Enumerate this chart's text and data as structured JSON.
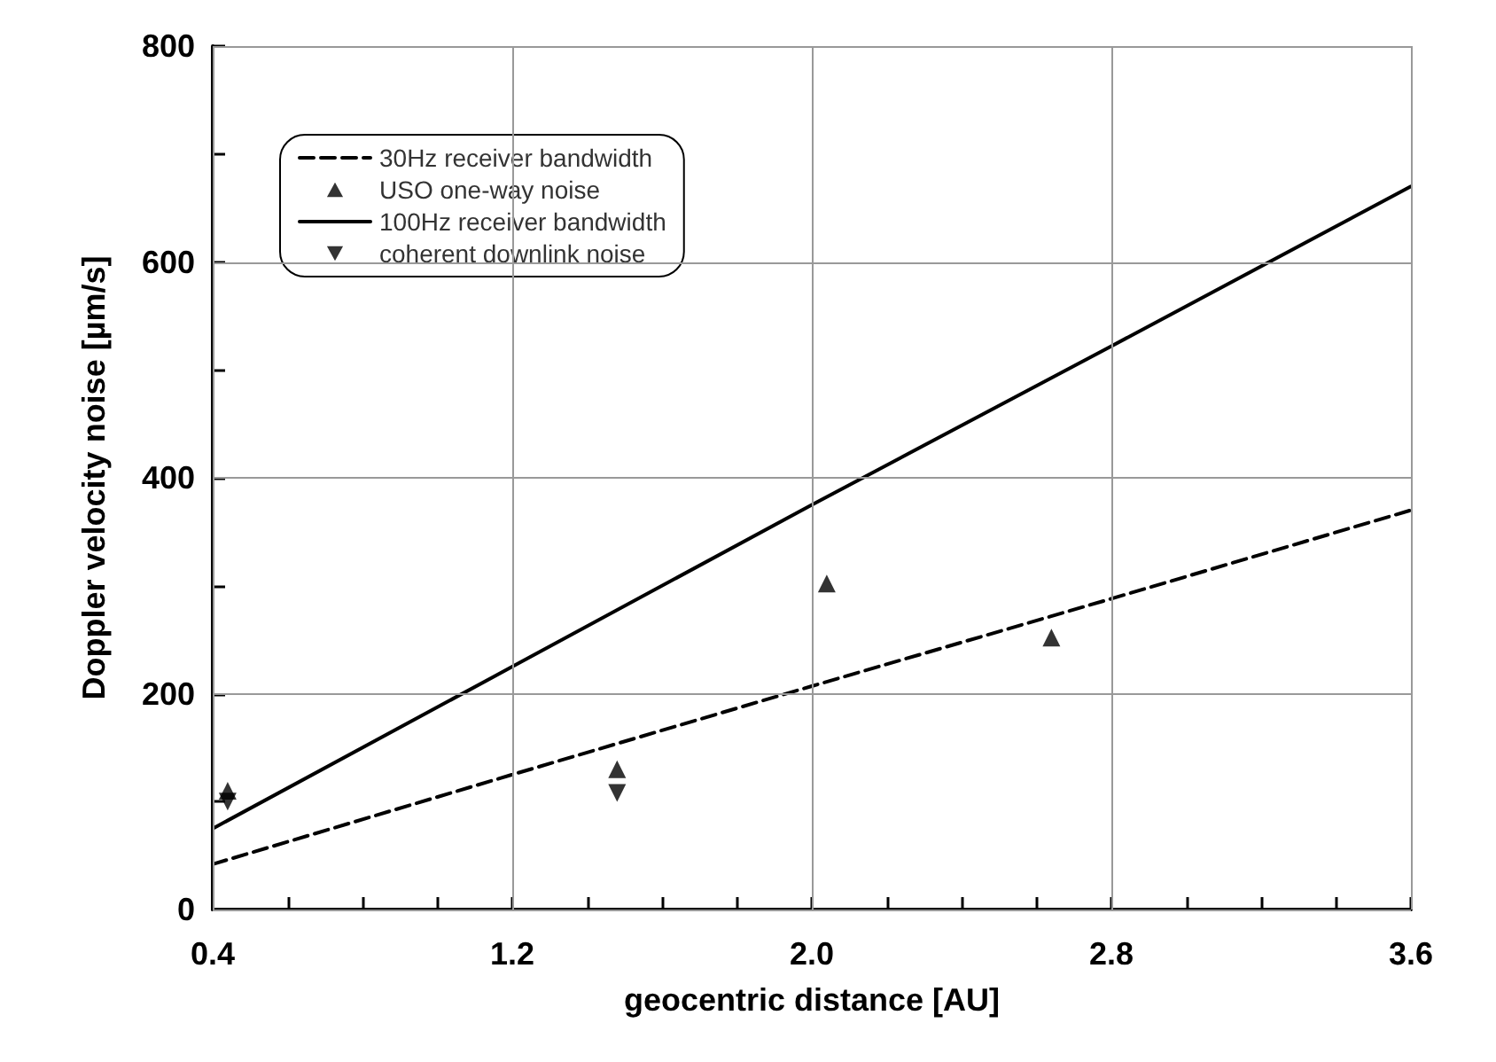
{
  "chart_data": {
    "type": "line",
    "xlabel": "geocentric distance [AU]",
    "ylabel": "Doppler velocity noise [µm/s]",
    "series": [
      {
        "name": "30Hz receiver bandwidth",
        "color": "#000000",
        "line_style": "dashed",
        "marker": "none",
        "x": [
          0.4,
          1.2,
          2.0,
          2.8,
          3.6
        ],
        "values": [
          42,
          125,
          207,
          288,
          370
        ]
      },
      {
        "name": "USO one-way noise",
        "color": "#000000",
        "type": "scatter",
        "marker": "triangle",
        "x": [
          0.44,
          1.48,
          2.04,
          2.64
        ],
        "values": [
          110,
          130,
          302,
          252
        ]
      },
      {
        "name": "100Hz receiver bandwidth",
        "color": "#000000",
        "line_style": "solid",
        "marker": "none",
        "x": [
          0.4,
          1.2,
          2.0,
          2.8,
          3.6
        ],
        "values": [
          75,
          225,
          375,
          522,
          670
        ]
      },
      {
        "name": "coherent downlink noise",
        "color": "#000000",
        "type": "scatter",
        "marker": "triangle-down",
        "x": [
          0.44,
          1.48
        ],
        "values": [
          100,
          108
        ]
      }
    ],
    "xlim": [
      0.4,
      3.6
    ],
    "xticks": [
      0.4,
      {
        "value": 0.6,
        "label": null
      },
      {
        "value": 0.8,
        "label": null
      },
      {
        "value": 1.0,
        "label": null
      },
      1.2,
      {
        "value": 1.4,
        "label": null
      },
      {
        "value": 1.6,
        "label": null
      },
      {
        "value": 1.8,
        "label": null
      },
      {
        "value": 2.0,
        "label": "2.0"
      },
      {
        "value": 2.2,
        "label": null
      },
      {
        "value": 2.4,
        "label": null
      },
      {
        "value": 2.6,
        "label": null
      },
      2.8,
      {
        "value": 3.0,
        "label": null
      },
      {
        "value": 3.2,
        "label": null
      },
      {
        "value": 3.4,
        "label": null
      },
      3.6
    ],
    "ylim": [
      0,
      800
    ],
    "yticks": [
      0,
      {
        "value": 100,
        "label": null
      },
      200,
      {
        "value": 300,
        "label": null
      },
      400,
      {
        "value": 500,
        "label": null
      },
      600,
      {
        "value": 700,
        "label": null
      },
      800
    ],
    "grid": true,
    "legend": "top left"
  }
}
